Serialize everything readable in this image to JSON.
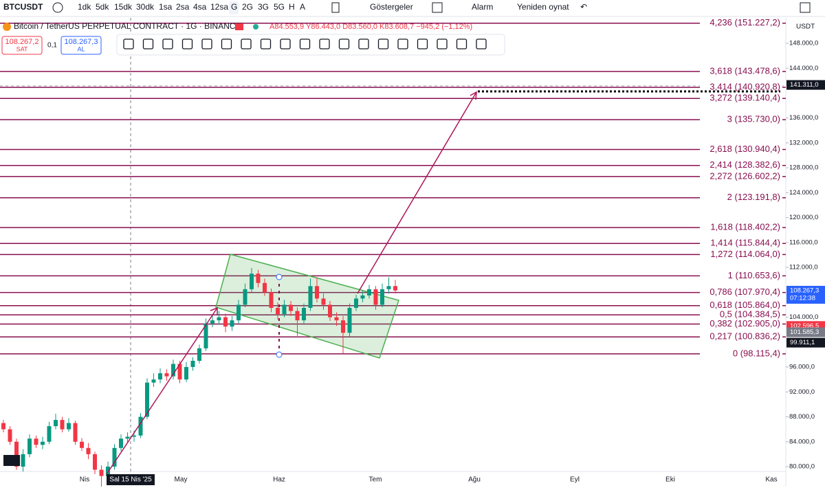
{
  "toolbar": {
    "symbol": "BTCUSDT",
    "intervals": [
      "1dk",
      "5dk",
      "15dk",
      "30dk",
      "1sa",
      "2sa",
      "4sa",
      "12sa",
      "G",
      "2G",
      "3G",
      "5G",
      "H",
      "A"
    ],
    "indicators": "Göstergeler",
    "alarm": "Alarm",
    "replay": "Yeniden oynat"
  },
  "header": {
    "title": "Bitcoin / TetherUS PERPETUAL CONTRACT · 1G · BINANCE",
    "ohlc": "A84.553,9 Y86.443,0 D83.560,0 K83.608,7 −945,2 (−1,12%)",
    "sell_price": "108.267,2",
    "sell_label": "SAT",
    "spread": "0,1",
    "buy_price": "108.267,3",
    "buy_label": "AL"
  },
  "price_axis": {
    "currency": "USDT",
    "ylim": [
      79000,
      152500
    ],
    "ticks": [
      {
        "value": 148000,
        "label": "148.000,0"
      },
      {
        "value": 144000,
        "label": "144.000,0"
      },
      {
        "value": 136000,
        "label": "136.000,0"
      },
      {
        "value": 132000,
        "label": "132.000,0"
      },
      {
        "value": 128000,
        "label": "128.000,0"
      },
      {
        "value": 124000,
        "label": "124.000,0"
      },
      {
        "value": 120000,
        "label": "120.000,0"
      },
      {
        "value": 116000,
        "label": "116.000,0"
      },
      {
        "value": 112000,
        "label": "112.000,0"
      },
      {
        "value": 104000,
        "label": "104.000,0"
      },
      {
        "value": 96000,
        "label": "96.000,0"
      },
      {
        "value": 92000,
        "label": "92.000,0"
      },
      {
        "value": 88000,
        "label": "88.000,0"
      },
      {
        "value": 84000,
        "label": "84.000,0"
      },
      {
        "value": 80000,
        "label": "80.000,0"
      }
    ]
  },
  "badges": [
    {
      "value": 141311,
      "label": "141.311,0",
      "color": "#131722"
    },
    {
      "value": 108267.3,
      "label": "108.267,3",
      "sub": "07:12:38",
      "color": "#2962ff"
    },
    {
      "value": 102596.5,
      "label": "102.596,5",
      "color": "#f23645"
    },
    {
      "value": 101585.3,
      "label": "101.585,3",
      "color": "#787b86"
    },
    {
      "value": 99911.1,
      "label": "99.911,1",
      "color": "#131722"
    }
  ],
  "time_axis": [
    "Nis",
    "Sal 15 Nis '25",
    "May",
    "Haz",
    "Tem",
    "Ağu",
    "Eyl",
    "Eki",
    "Kas"
  ],
  "fib_levels": [
    {
      "label": "4,236 (151.227,2)",
      "value": 151227.2
    },
    {
      "label": "3,618 (143.478,6)",
      "value": 143478.6
    },
    {
      "label": "3,414 (140.920,8)",
      "value": 140920.8
    },
    {
      "label": "3,272 (139.140,4)",
      "value": 139140.4
    },
    {
      "label": "3 (135.730,0)",
      "value": 135730
    },
    {
      "label": "2,618 (130.940,4)",
      "value": 130940.4
    },
    {
      "label": "2,414 (128.382,6)",
      "value": 128382.6
    },
    {
      "label": "2,272 (126.602,2)",
      "value": 126602.2
    },
    {
      "label": "2 (123.191,8)",
      "value": 123191.8
    },
    {
      "label": "1,618 (118.402,2)",
      "value": 118402.2
    },
    {
      "label": "1,414 (115.844,4)",
      "value": 115844.4
    },
    {
      "label": "1,272 (114.064,0)",
      "value": 114064
    },
    {
      "label": "1 (110.653,6)",
      "value": 110653.6
    },
    {
      "label": "0,786 (107.970,4)",
      "value": 107970.4
    },
    {
      "label": "0,618 (105.864,0)",
      "value": 105864
    },
    {
      "label": "0,5 (104.384,5)",
      "value": 104384.5
    },
    {
      "label": "0,382 (102.905,0)",
      "value": 102905
    },
    {
      "label": "0,217 (100.836,2)",
      "value": 100836.2
    },
    {
      "label": "0 (98.115,4)",
      "value": 98115.4
    }
  ],
  "candles": [
    [
      87000,
      87500,
      85500,
      86000
    ],
    [
      86000,
      86500,
      83500,
      84000
    ],
    [
      84000,
      84500,
      79500,
      80000
    ],
    [
      80000,
      82800,
      79200,
      82000
    ],
    [
      82000,
      85200,
      81500,
      84500
    ],
    [
      84500,
      85000,
      83000,
      83500
    ],
    [
      83500,
      84800,
      82800,
      84000
    ],
    [
      84000,
      87200,
      83600,
      86500
    ],
    [
      86500,
      88500,
      86000,
      87500
    ],
    [
      87500,
      88000,
      85500,
      86000
    ],
    [
      86000,
      87800,
      85600,
      87000
    ],
    [
      87000,
      87400,
      83500,
      84000
    ],
    [
      84000,
      84600,
      82500,
      83000
    ],
    [
      83000,
      83800,
      81200,
      82000
    ],
    [
      82000,
      82400,
      78800,
      79500
    ],
    [
      79500,
      80200,
      76000,
      78500
    ],
    [
      78500,
      80800,
      77800,
      80000
    ],
    [
      80000,
      83600,
      79500,
      83000
    ],
    [
      83000,
      85200,
      82500,
      84500
    ],
    [
      84500,
      85500,
      83800,
      84800
    ],
    [
      84800,
      85800,
      84000,
      85000
    ],
    [
      85000,
      88600,
      84600,
      88000
    ],
    [
      88000,
      94200,
      87600,
      93500
    ],
    [
      93500,
      95000,
      92800,
      94000
    ],
    [
      94000,
      95800,
      93400,
      95000
    ],
    [
      95000,
      95600,
      93800,
      94500
    ],
    [
      94500,
      97200,
      94000,
      96500
    ],
    [
      96500,
      97000,
      93400,
      94000
    ],
    [
      94000,
      96800,
      93600,
      96000
    ],
    [
      96000,
      97600,
      95400,
      97000
    ],
    [
      97000,
      99600,
      96600,
      99000
    ],
    [
      99000,
      103800,
      98600,
      103000
    ],
    [
      103000,
      104400,
      102400,
      103500
    ],
    [
      103500,
      105000,
      102800,
      104000
    ],
    [
      104000,
      104600,
      101600,
      102500
    ],
    [
      102500,
      104200,
      101800,
      103500
    ],
    [
      103500,
      106800,
      103000,
      106000
    ],
    [
      106000,
      109400,
      105600,
      108500
    ],
    [
      108500,
      111900,
      108000,
      111000
    ],
    [
      111000,
      111600,
      108800,
      109500
    ],
    [
      109500,
      110200,
      107400,
      108000
    ],
    [
      108000,
      108600,
      104800,
      105500
    ],
    [
      105500,
      106400,
      103600,
      104500
    ],
    [
      104500,
      106800,
      104000,
      106000
    ],
    [
      106000,
      106600,
      104200,
      105000
    ],
    [
      105000,
      105600,
      101000,
      103500
    ],
    [
      103500,
      106200,
      103000,
      105500
    ],
    [
      105500,
      110200,
      105000,
      109000
    ],
    [
      109000,
      110400,
      106400,
      107000
    ],
    [
      107000,
      107800,
      105200,
      106000
    ],
    [
      106000,
      106600,
      103400,
      104000
    ],
    [
      104000,
      104800,
      102600,
      103500
    ],
    [
      103500,
      104200,
      98200,
      101500
    ],
    [
      101500,
      106200,
      100800,
      105500
    ],
    [
      105500,
      107600,
      105000,
      107000
    ],
    [
      107000,
      108200,
      106400,
      107500
    ],
    [
      107500,
      109200,
      107000,
      108500
    ],
    [
      108500,
      109000,
      105200,
      106000
    ],
    [
      106000,
      109400,
      105600,
      108500
    ],
    [
      108500,
      110400,
      107800,
      109000
    ],
    [
      109000,
      110000,
      107800,
      108300
    ]
  ]
}
